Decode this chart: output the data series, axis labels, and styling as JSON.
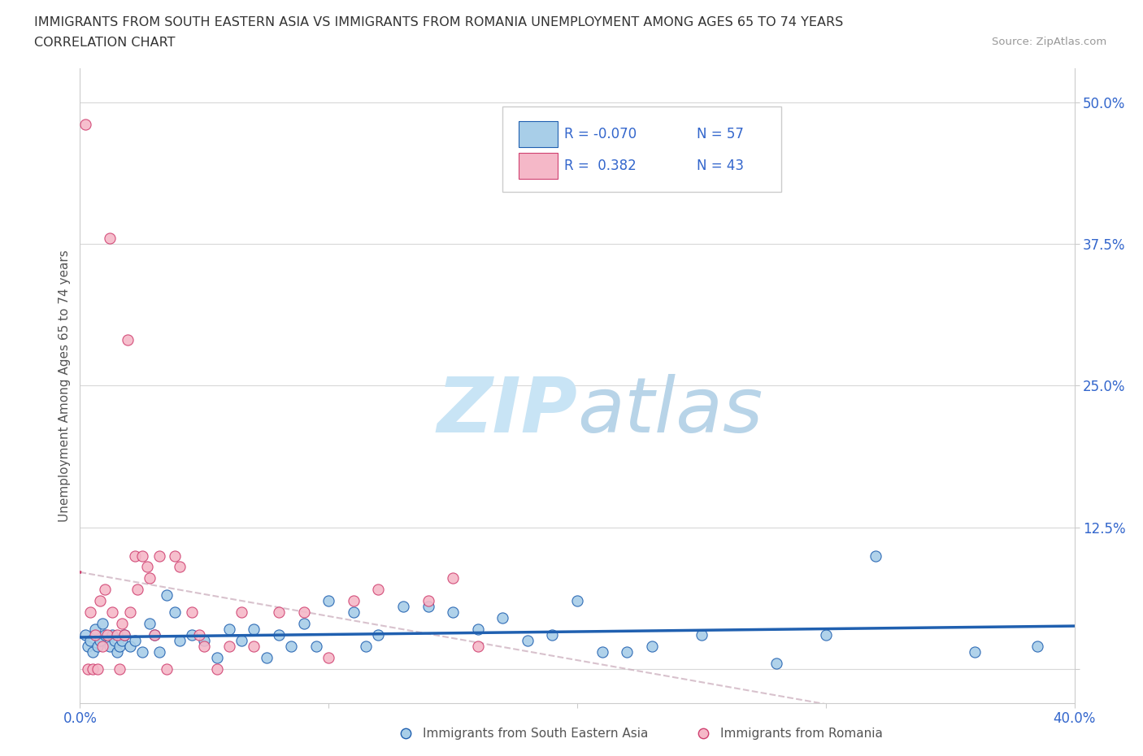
{
  "title_line1": "IMMIGRANTS FROM SOUTH EASTERN ASIA VS IMMIGRANTS FROM ROMANIA UNEMPLOYMENT AMONG AGES 65 TO 74 YEARS",
  "title_line2": "CORRELATION CHART",
  "source_text": "Source: ZipAtlas.com",
  "ylabel": "Unemployment Among Ages 65 to 74 years",
  "xlim": [
    0.0,
    0.4
  ],
  "ylim": [
    -0.03,
    0.53
  ],
  "yticks": [
    0.0,
    0.125,
    0.25,
    0.375,
    0.5
  ],
  "ytick_labels": [
    "",
    "12.5%",
    "25.0%",
    "37.5%",
    "50.0%"
  ],
  "xticks": [
    0.0,
    0.1,
    0.2,
    0.3,
    0.4
  ],
  "xtick_labels": [
    "0.0%",
    "",
    "",
    "",
    "40.0%"
  ],
  "color_blue": "#A8CEE8",
  "color_pink": "#F5B8C8",
  "line_blue": "#2060B0",
  "line_pink": "#D04070",
  "legend_text_color": "#3366CC",
  "legend_R_blue": "R = -0.070",
  "legend_N_blue": "N = 57",
  "legend_R_pink": "R =  0.382",
  "legend_N_pink": "N = 43",
  "watermark_color": "#C8E4F5",
  "blue_x": [
    0.002,
    0.003,
    0.004,
    0.005,
    0.006,
    0.007,
    0.008,
    0.009,
    0.01,
    0.012,
    0.013,
    0.014,
    0.015,
    0.016,
    0.017,
    0.018,
    0.02,
    0.022,
    0.025,
    0.028,
    0.03,
    0.032,
    0.035,
    0.038,
    0.04,
    0.045,
    0.05,
    0.055,
    0.06,
    0.065,
    0.07,
    0.075,
    0.08,
    0.085,
    0.09,
    0.095,
    0.1,
    0.11,
    0.115,
    0.12,
    0.13,
    0.14,
    0.15,
    0.16,
    0.17,
    0.18,
    0.19,
    0.2,
    0.21,
    0.22,
    0.23,
    0.25,
    0.28,
    0.3,
    0.32,
    0.36,
    0.385
  ],
  "blue_y": [
    0.03,
    0.02,
    0.025,
    0.015,
    0.035,
    0.02,
    0.025,
    0.04,
    0.03,
    0.02,
    0.03,
    0.025,
    0.015,
    0.02,
    0.025,
    0.03,
    0.02,
    0.025,
    0.015,
    0.04,
    0.03,
    0.025,
    0.065,
    0.05,
    0.025,
    0.03,
    0.035,
    0.025,
    0.04,
    0.025,
    0.035,
    0.02,
    0.03,
    0.025,
    0.04,
    0.03,
    0.06,
    0.05,
    0.025,
    0.03,
    0.06,
    0.055,
    0.06,
    0.04,
    0.045,
    0.025,
    0.03,
    0.06,
    0.02,
    0.025,
    0.025,
    0.035,
    0.01,
    0.03,
    0.1,
    0.025,
    0.02
  ],
  "blue_y_offsets": [
    0.0,
    0.0,
    0.0,
    0.0,
    0.0,
    0.0,
    0.0,
    0.0,
    0.0,
    0.0,
    0.0,
    0.0,
    0.0,
    0.0,
    0.0,
    0.0,
    0.0,
    0.0,
    0.0,
    0.0,
    0.0,
    -0.01,
    0.0,
    0.0,
    0.0,
    0.0,
    -0.01,
    -0.015,
    -0.005,
    0.0,
    0.0,
    -0.01,
    0.0,
    -0.005,
    0.0,
    -0.01,
    0.0,
    0.0,
    -0.005,
    0.0,
    -0.005,
    0.0,
    -0.01,
    -0.005,
    0.0,
    0.0,
    0.0,
    0.0,
    -0.005,
    -0.01,
    -0.005,
    -0.005,
    -0.005,
    0.0,
    0.0,
    -0.01,
    0.0
  ],
  "pink_x": [
    0.002,
    0.003,
    0.004,
    0.005,
    0.006,
    0.007,
    0.008,
    0.009,
    0.01,
    0.011,
    0.012,
    0.013,
    0.015,
    0.016,
    0.017,
    0.018,
    0.019,
    0.02,
    0.022,
    0.023,
    0.025,
    0.027,
    0.028,
    0.03,
    0.032,
    0.035,
    0.038,
    0.04,
    0.045,
    0.048,
    0.05,
    0.055,
    0.06,
    0.065,
    0.07,
    0.08,
    0.09,
    0.1,
    0.11,
    0.12,
    0.14,
    0.15,
    0.16
  ],
  "pink_y": [
    0.48,
    0.0,
    0.05,
    0.0,
    0.03,
    0.0,
    0.06,
    0.02,
    0.07,
    0.03,
    0.38,
    0.05,
    0.03,
    0.0,
    0.04,
    0.03,
    0.29,
    0.05,
    0.1,
    0.07,
    0.1,
    0.09,
    0.08,
    0.03,
    0.1,
    0.0,
    0.1,
    0.09,
    0.05,
    0.03,
    0.02,
    0.0,
    0.02,
    0.05,
    0.02,
    0.05,
    0.05,
    0.01,
    0.06,
    0.07,
    0.06,
    0.08,
    0.02
  ]
}
